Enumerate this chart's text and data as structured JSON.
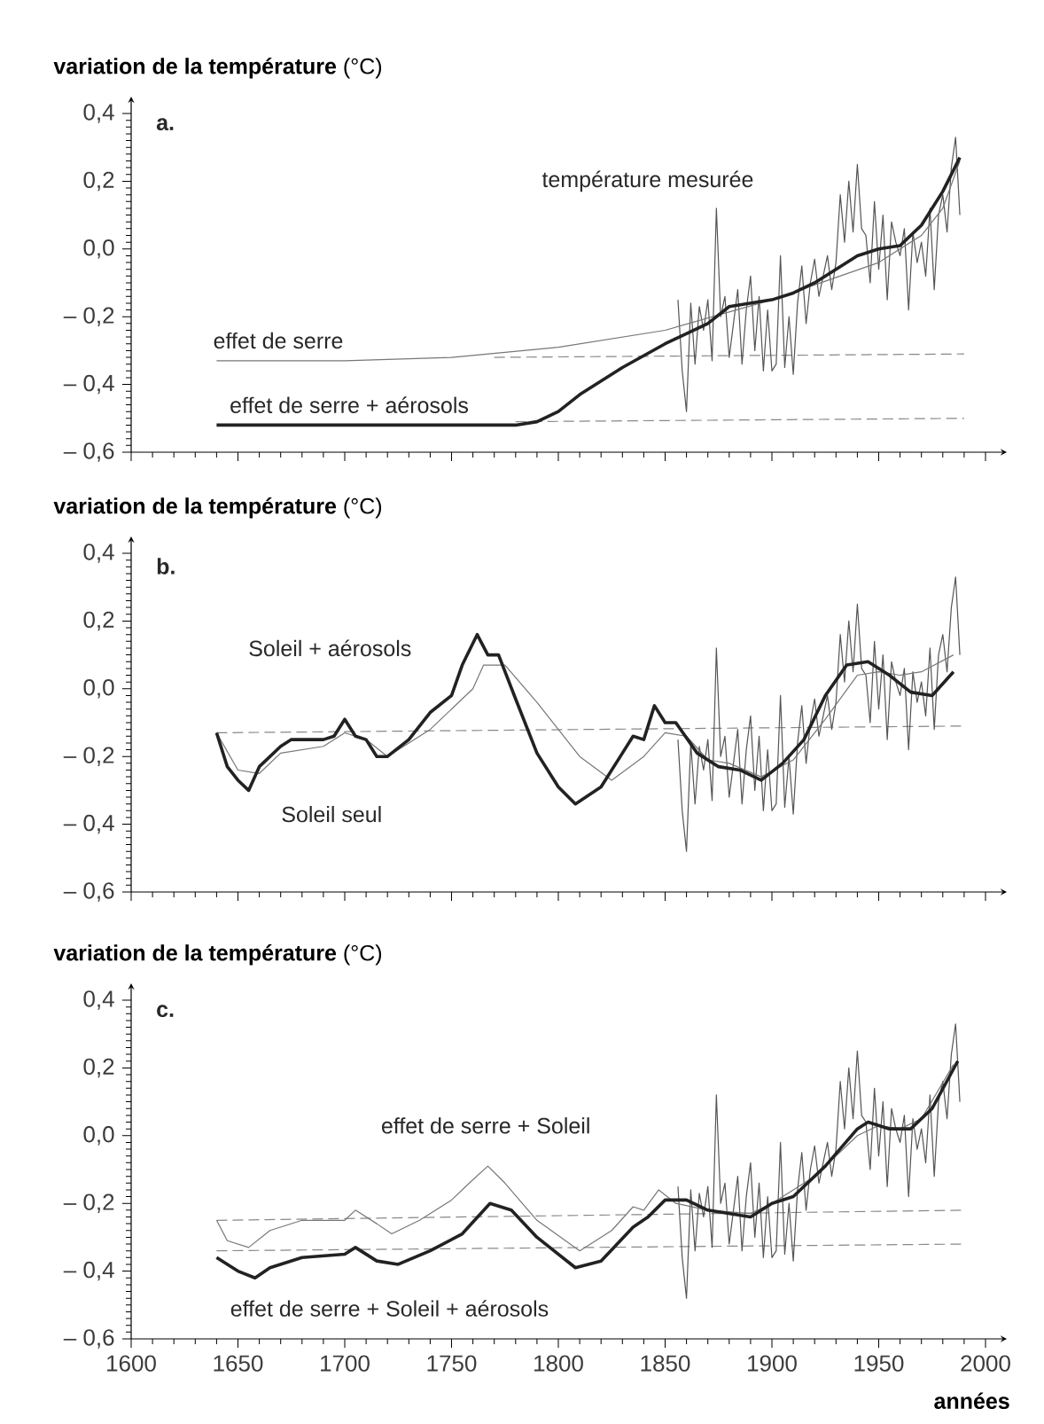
{
  "chart_data": [
    {
      "type": "line",
      "ylabel": "**variation de la température** (°C)",
      "marker": "none",
      "tick_labels": "y",
      "xlim": [
        1600,
        2010
      ],
      "ylim": [
        -0.6,
        0.45
      ],
      "xticks": [
        {
          "value": 1600,
          "label": null
        },
        {
          "value": 1650,
          "label": null
        },
        {
          "value": 1700,
          "label": null
        },
        {
          "value": 1750,
          "label": null
        },
        {
          "value": 1800,
          "label": null
        },
        {
          "value": 1850,
          "label": null
        },
        {
          "value": 1900,
          "label": null
        },
        {
          "value": 1950,
          "label": null
        },
        {
          "value": 2000,
          "label": null
        }
      ],
      "yticks": [
        {
          "value": -0.6,
          "label": "– 0,6"
        },
        {
          "value": -0.4,
          "label": "– 0,4"
        },
        {
          "value": -0.2,
          "label": "– 0,2"
        },
        {
          "value": 0.0,
          "label": "0,0"
        },
        {
          "value": 0.2,
          "label": "0,2"
        },
        {
          "value": 0.4,
          "label": "0,4"
        }
      ],
      "annotations": [
        "a.",
        "température mesurée",
        "effet de serre",
        "effet de serre + aérosols"
      ],
      "series": [
        {
          "color": "#888888",
          "line_style": "dashed",
          "x": [
            1770,
            1990
          ],
          "values": [
            -0.32,
            -0.31
          ]
        },
        {
          "color": "#888888",
          "line_style": "dashed",
          "x": [
            1780,
            1990
          ],
          "values": [
            -0.51,
            -0.5
          ]
        },
        {
          "color": "#555555",
          "x": [
            1856,
            1858,
            1860,
            1862,
            1864,
            1866,
            1868,
            1870,
            1872,
            1874,
            1876,
            1878,
            1880,
            1882,
            1884,
            1886,
            1888,
            1890,
            1892,
            1894,
            1896,
            1898,
            1900,
            1902,
            1904,
            1906,
            1908,
            1910,
            1912,
            1914,
            1916,
            1918,
            1920,
            1922,
            1924,
            1926,
            1928,
            1930,
            1932,
            1934,
            1936,
            1938,
            1940,
            1942,
            1944,
            1946,
            1948,
            1950,
            1952,
            1954,
            1956,
            1958,
            1960,
            1962,
            1964,
            1966,
            1968,
            1970,
            1972,
            1974,
            1976,
            1978,
            1980,
            1982,
            1984,
            1986,
            1988
          ],
          "values": [
            -0.15,
            -0.36,
            -0.48,
            -0.16,
            -0.34,
            -0.17,
            -0.24,
            -0.15,
            -0.33,
            0.12,
            -0.2,
            -0.14,
            -0.32,
            -0.22,
            -0.12,
            -0.34,
            -0.18,
            -0.08,
            -0.3,
            -0.14,
            -0.36,
            -0.18,
            -0.36,
            -0.34,
            -0.02,
            -0.35,
            -0.2,
            -0.37,
            -0.16,
            -0.05,
            -0.22,
            -0.1,
            -0.03,
            -0.14,
            -0.08,
            -0.02,
            -0.12,
            -0.04,
            0.16,
            0.02,
            0.2,
            0.05,
            0.25,
            0.06,
            0.04,
            -0.1,
            0.14,
            -0.06,
            0.1,
            -0.15,
            0.08,
            0.02,
            -0.02,
            0.06,
            -0.18,
            0.05,
            -0.04,
            0.02,
            -0.08,
            0.12,
            -0.12,
            0.1,
            0.16,
            0.05,
            0.24,
            0.33,
            0.1
          ]
        },
        {
          "color": "#777777",
          "x": [
            1640,
            1700,
            1750,
            1800,
            1850,
            1900,
            1950,
            1970,
            1980,
            1988
          ],
          "values": [
            -0.33,
            -0.33,
            -0.32,
            -0.29,
            -0.24,
            -0.15,
            -0.04,
            0.04,
            0.12,
            0.26
          ]
        },
        {
          "color": "#222222",
          "x": [
            1640,
            1700,
            1780,
            1790,
            1800,
            1810,
            1830,
            1850,
            1870,
            1880,
            1900,
            1910,
            1920,
            1930,
            1940,
            1950,
            1960,
            1970,
            1980,
            1988
          ],
          "values": [
            -0.52,
            -0.52,
            -0.52,
            -0.51,
            -0.48,
            -0.43,
            -0.35,
            -0.28,
            -0.22,
            -0.17,
            -0.15,
            -0.13,
            -0.1,
            -0.06,
            -0.02,
            0.0,
            0.01,
            0.07,
            0.17,
            0.27
          ]
        }
      ]
    },
    {
      "type": "line",
      "ylabel": "**variation de la température** (°C)",
      "marker": "none",
      "tick_labels": "y",
      "xlim": [
        1600,
        2010
      ],
      "ylim": [
        -0.6,
        0.45
      ],
      "xticks": [
        {
          "value": 1600,
          "label": null
        },
        {
          "value": 1650,
          "label": null
        },
        {
          "value": 1700,
          "label": null
        },
        {
          "value": 1750,
          "label": null
        },
        {
          "value": 1800,
          "label": null
        },
        {
          "value": 1850,
          "label": null
        },
        {
          "value": 1900,
          "label": null
        },
        {
          "value": 1950,
          "label": null
        },
        {
          "value": 2000,
          "label": null
        }
      ],
      "yticks": [
        {
          "value": -0.6,
          "label": "– 0,6"
        },
        {
          "value": -0.4,
          "label": "– 0,4"
        },
        {
          "value": -0.2,
          "label": "– 0,2"
        },
        {
          "value": 0.0,
          "label": "0,0"
        },
        {
          "value": 0.2,
          "label": "0,2"
        },
        {
          "value": 0.4,
          "label": "0,4"
        }
      ],
      "annotations": [
        "b.",
        "Soleil + aérosols",
        "Soleil seul"
      ],
      "series": [
        {
          "color": "#888888",
          "line_style": "dashed",
          "x": [
            1640,
            1990
          ],
          "values": [
            -0.13,
            -0.11
          ]
        },
        {
          "color": "#555555",
          "x": [
            1856,
            1858,
            1860,
            1862,
            1864,
            1866,
            1868,
            1870,
            1872,
            1874,
            1876,
            1878,
            1880,
            1882,
            1884,
            1886,
            1888,
            1890,
            1892,
            1894,
            1896,
            1898,
            1900,
            1902,
            1904,
            1906,
            1908,
            1910,
            1912,
            1914,
            1916,
            1918,
            1920,
            1922,
            1924,
            1926,
            1928,
            1930,
            1932,
            1934,
            1936,
            1938,
            1940,
            1942,
            1944,
            1946,
            1948,
            1950,
            1952,
            1954,
            1956,
            1958,
            1960,
            1962,
            1964,
            1966,
            1968,
            1970,
            1972,
            1974,
            1976,
            1978,
            1980,
            1982,
            1984,
            1986,
            1988
          ],
          "values": [
            -0.15,
            -0.36,
            -0.48,
            -0.16,
            -0.34,
            -0.17,
            -0.24,
            -0.15,
            -0.33,
            0.12,
            -0.2,
            -0.14,
            -0.32,
            -0.22,
            -0.12,
            -0.34,
            -0.18,
            -0.08,
            -0.3,
            -0.14,
            -0.36,
            -0.18,
            -0.36,
            -0.34,
            -0.02,
            -0.35,
            -0.2,
            -0.37,
            -0.16,
            -0.05,
            -0.22,
            -0.1,
            -0.03,
            -0.14,
            -0.08,
            -0.02,
            -0.12,
            -0.04,
            0.16,
            0.02,
            0.2,
            0.05,
            0.25,
            0.06,
            0.04,
            -0.1,
            0.14,
            -0.06,
            0.1,
            -0.15,
            0.08,
            0.02,
            -0.02,
            0.06,
            -0.18,
            0.05,
            -0.04,
            0.02,
            -0.08,
            0.12,
            -0.12,
            0.1,
            0.16,
            0.05,
            0.24,
            0.33,
            0.1
          ]
        },
        {
          "color": "#777777",
          "x": [
            1640,
            1650,
            1660,
            1670,
            1690,
            1700,
            1710,
            1720,
            1740,
            1760,
            1765,
            1775,
            1790,
            1810,
            1825,
            1840,
            1850,
            1860,
            1870,
            1880,
            1895,
            1910,
            1925,
            1940,
            1950,
            1960,
            1970,
            1985
          ],
          "values": [
            -0.13,
            -0.24,
            -0.25,
            -0.19,
            -0.17,
            -0.13,
            -0.15,
            -0.2,
            -0.12,
            0.0,
            0.07,
            0.07,
            -0.04,
            -0.2,
            -0.27,
            -0.2,
            -0.13,
            -0.14,
            -0.21,
            -0.22,
            -0.26,
            -0.21,
            -0.09,
            0.04,
            0.05,
            0.04,
            0.05,
            0.1
          ]
        },
        {
          "color": "#222222",
          "x": [
            1640,
            1645,
            1650,
            1655,
            1660,
            1670,
            1675,
            1690,
            1695,
            1700,
            1705,
            1710,
            1715,
            1720,
            1730,
            1740,
            1750,
            1755,
            1762,
            1767,
            1772,
            1780,
            1790,
            1800,
            1808,
            1820,
            1830,
            1835,
            1840,
            1845,
            1850,
            1855,
            1865,
            1875,
            1885,
            1895,
            1905,
            1915,
            1925,
            1935,
            1945,
            1955,
            1965,
            1975,
            1985
          ],
          "values": [
            -0.13,
            -0.23,
            -0.27,
            -0.3,
            -0.23,
            -0.17,
            -0.15,
            -0.15,
            -0.14,
            -0.09,
            -0.14,
            -0.15,
            -0.2,
            -0.2,
            -0.15,
            -0.07,
            -0.02,
            0.07,
            0.16,
            0.1,
            0.1,
            -0.03,
            -0.19,
            -0.29,
            -0.34,
            -0.29,
            -0.19,
            -0.14,
            -0.15,
            -0.05,
            -0.1,
            -0.1,
            -0.19,
            -0.23,
            -0.24,
            -0.27,
            -0.22,
            -0.15,
            -0.02,
            0.07,
            0.08,
            0.04,
            -0.01,
            -0.02,
            0.05
          ]
        }
      ]
    },
    {
      "type": "line",
      "ylabel": "**variation de la température** (°C)",
      "xlabel": "années",
      "marker": "none",
      "xlim": [
        1600,
        2010
      ],
      "ylim": [
        -0.6,
        0.45
      ],
      "xticks": [
        1600,
        1650,
        1700,
        1750,
        1800,
        1850,
        1900,
        1950,
        2000
      ],
      "yticks": [
        {
          "value": -0.6,
          "label": "– 0,6"
        },
        {
          "value": -0.4,
          "label": "– 0,4"
        },
        {
          "value": -0.2,
          "label": "– 0,2"
        },
        {
          "value": 0.0,
          "label": "0,0"
        },
        {
          "value": 0.2,
          "label": "0,2"
        },
        {
          "value": 0.4,
          "label": "0,4"
        }
      ],
      "annotations": [
        "c.",
        "effet de serre + Soleil",
        "effet de serre + Soleil + aérosols"
      ],
      "series": [
        {
          "color": "#888888",
          "line_style": "dashed",
          "x": [
            1640,
            1990
          ],
          "values": [
            -0.25,
            -0.22
          ]
        },
        {
          "color": "#888888",
          "line_style": "dashed",
          "x": [
            1640,
            1990
          ],
          "values": [
            -0.34,
            -0.32
          ]
        },
        {
          "color": "#555555",
          "x": [
            1856,
            1858,
            1860,
            1862,
            1864,
            1866,
            1868,
            1870,
            1872,
            1874,
            1876,
            1878,
            1880,
            1882,
            1884,
            1886,
            1888,
            1890,
            1892,
            1894,
            1896,
            1898,
            1900,
            1902,
            1904,
            1906,
            1908,
            1910,
            1912,
            1914,
            1916,
            1918,
            1920,
            1922,
            1924,
            1926,
            1928,
            1930,
            1932,
            1934,
            1936,
            1938,
            1940,
            1942,
            1944,
            1946,
            1948,
            1950,
            1952,
            1954,
            1956,
            1958,
            1960,
            1962,
            1964,
            1966,
            1968,
            1970,
            1972,
            1974,
            1976,
            1978,
            1980,
            1982,
            1984,
            1986,
            1988
          ],
          "values": [
            -0.15,
            -0.36,
            -0.48,
            -0.16,
            -0.34,
            -0.17,
            -0.24,
            -0.15,
            -0.33,
            0.12,
            -0.2,
            -0.14,
            -0.32,
            -0.22,
            -0.12,
            -0.34,
            -0.18,
            -0.08,
            -0.3,
            -0.14,
            -0.36,
            -0.18,
            -0.36,
            -0.34,
            -0.02,
            -0.35,
            -0.2,
            -0.37,
            -0.16,
            -0.05,
            -0.22,
            -0.1,
            -0.03,
            -0.14,
            -0.08,
            -0.02,
            -0.12,
            -0.04,
            0.16,
            0.02,
            0.2,
            0.05,
            0.25,
            0.06,
            0.04,
            -0.1,
            0.14,
            -0.06,
            0.1,
            -0.15,
            0.08,
            0.02,
            -0.02,
            0.06,
            -0.18,
            0.05,
            -0.04,
            0.02,
            -0.08,
            0.12,
            -0.12,
            0.1,
            0.16,
            0.05,
            0.24,
            0.33,
            0.1
          ]
        },
        {
          "color": "#777777",
          "x": [
            1640,
            1645,
            1655,
            1665,
            1680,
            1700,
            1705,
            1715,
            1722,
            1735,
            1750,
            1760,
            1767,
            1775,
            1790,
            1810,
            1825,
            1835,
            1840,
            1847,
            1855,
            1870,
            1890,
            1900,
            1920,
            1940,
            1950,
            1960,
            1970,
            1985
          ],
          "values": [
            -0.25,
            -0.31,
            -0.33,
            -0.28,
            -0.25,
            -0.25,
            -0.22,
            -0.26,
            -0.29,
            -0.25,
            -0.19,
            -0.13,
            -0.09,
            -0.14,
            -0.25,
            -0.34,
            -0.28,
            -0.21,
            -0.22,
            -0.16,
            -0.2,
            -0.22,
            -0.23,
            -0.2,
            -0.12,
            0.0,
            0.03,
            0.02,
            0.05,
            0.21
          ]
        },
        {
          "color": "#222222",
          "x": [
            1640,
            1650,
            1658,
            1665,
            1680,
            1700,
            1705,
            1715,
            1725,
            1740,
            1755,
            1768,
            1778,
            1790,
            1808,
            1820,
            1835,
            1842,
            1850,
            1860,
            1870,
            1890,
            1900,
            1910,
            1925,
            1940,
            1945,
            1955,
            1965,
            1975,
            1987
          ],
          "values": [
            -0.36,
            -0.4,
            -0.42,
            -0.39,
            -0.36,
            -0.35,
            -0.33,
            -0.37,
            -0.38,
            -0.34,
            -0.29,
            -0.2,
            -0.22,
            -0.3,
            -0.39,
            -0.37,
            -0.27,
            -0.24,
            -0.19,
            -0.19,
            -0.22,
            -0.24,
            -0.2,
            -0.18,
            -0.09,
            0.02,
            0.04,
            0.02,
            0.02,
            0.08,
            0.22
          ]
        }
      ]
    }
  ]
}
